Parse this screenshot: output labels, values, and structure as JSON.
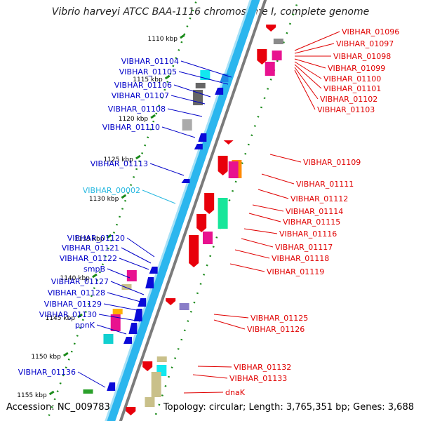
{
  "title": "Vibrio harveyi ATCC BAA-1116 chromosome I, complete genome",
  "footer": {
    "accession": "Accession: NC_009783",
    "summary": "Topology: circular; Length: 3,765,351 bp; Genes: 3,688"
  },
  "colors": {
    "forward_gene": "#e8000b",
    "reverse_gene": "#1010e0",
    "forward_label": "#e00000",
    "reverse_label": "#0000c8",
    "rna_label": "#27b8e0",
    "scale_tick": "#1a8a1a",
    "scale_label": "#000000",
    "backbone": "#2bb6ee",
    "strand_line": "#7b7b7b"
  },
  "scale": {
    "unit": "kbp",
    "ticks": [
      {
        "label": "1110 kbp"
      },
      {
        "label": "1115 kbp"
      },
      {
        "label": "1120 kbp"
      },
      {
        "label": "1125 kbp"
      },
      {
        "label": "1130 kbp"
      },
      {
        "label": "1135 kbp"
      },
      {
        "label": "1140 kbp"
      },
      {
        "label": "1145 kbp"
      },
      {
        "label": "1150 kbp"
      },
      {
        "label": "1155 kbp"
      }
    ]
  },
  "labels": {
    "forward_strand": [
      "VIBHAR_01096",
      "VIBHAR_01097",
      "VIBHAR_01098",
      "VIBHAR_01099",
      "VIBHAR_01100",
      "VIBHAR_01101",
      "VIBHAR_01102",
      "VIBHAR_01103",
      "VIBHAR_01109",
      "VIBHAR_01111",
      "VIBHAR_01112",
      "VIBHAR_01114",
      "VIBHAR_01115",
      "VIBHAR_01116",
      "VIBHAR_01117",
      "VIBHAR_01118",
      "VIBHAR_01119",
      "VIBHAR_01125",
      "VIBHAR_01126",
      "VIBHAR_01132",
      "VIBHAR_01133",
      "dnaK"
    ],
    "reverse_strand": [
      "VIBHAR_01104",
      "VIBHAR_01105",
      "VIBHAR_01106",
      "VIBHAR_01107",
      "VIBHAR_01108",
      "VIBHAR_01110",
      "VIBHAR_01113",
      "VIBHAR_00002",
      "VIBHAR_01120",
      "VIBHAR_01121",
      "VIBHAR_01122",
      "smpB",
      "VIBHAR_01127",
      "VIBHAR_01128",
      "VIBHAR_01129",
      "VIBHAR_01130",
      "ppnK",
      "VIBHAR_01136"
    ]
  }
}
